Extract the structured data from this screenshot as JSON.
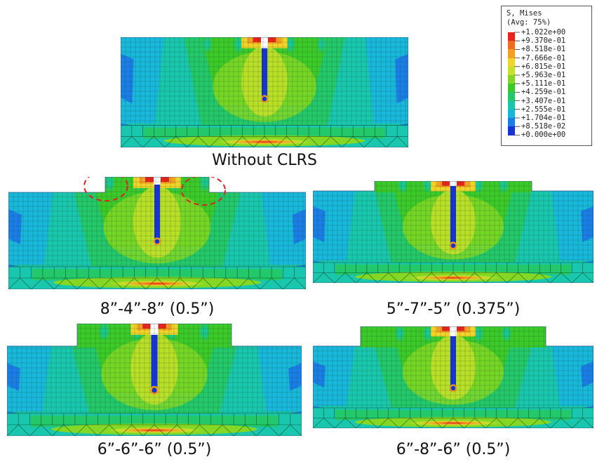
{
  "legend": {
    "title_line1": "S, Mises",
    "title_line2": "(Avg: 75%)",
    "values": [
      "+1.022e+00",
      "+9.370e-01",
      "+8.518e-01",
      "+7.666e-01",
      "+6.815e-01",
      "+5.963e-01",
      "+5.111e-01",
      "+4.259e-01",
      "+3.407e-01",
      "+2.555e-01",
      "+1.704e-01",
      "+8.518e-02",
      "+0.000e+00"
    ],
    "colors": [
      "#e8231c",
      "#f26a1d",
      "#f5a021",
      "#f2d52a",
      "#c6e22a",
      "#84d824",
      "#3cca2a",
      "#23c86a",
      "#19c7ae",
      "#18b7dc",
      "#1a7ee8",
      "#1733d6"
    ]
  },
  "panels": [
    {
      "id": "baseline",
      "caption": "Without CLRS"
    },
    {
      "id": "clrs-8-4-8",
      "caption": "8”-4”-8” (0.5”)"
    },
    {
      "id": "clrs-5-7-5",
      "caption": "5”-7”-5” (0.375”)"
    },
    {
      "id": "clrs-6-6-6",
      "caption": "6”-6”-6” (0.5”)"
    },
    {
      "id": "clrs-6-8-6",
      "caption": "6”-8”-6” (0.5”)"
    }
  ]
}
